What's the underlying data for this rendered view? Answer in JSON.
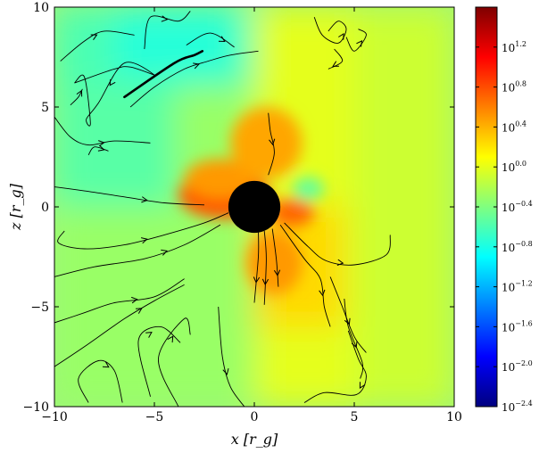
{
  "chart_data": {
    "type": "heatmap",
    "title": "",
    "xlabel": "x [r_g]",
    "ylabel": "z [r_g]",
    "xlim": [
      -10,
      10
    ],
    "ylim": [
      -10,
      10
    ],
    "x_ticks": [
      -10,
      -5,
      0,
      5,
      10
    ],
    "y_ticks": [
      -10,
      -5,
      0,
      5,
      10
    ],
    "x_tick_labels": [
      "−10",
      "−5",
      "0",
      "5",
      "10"
    ],
    "y_tick_labels": [
      "−10",
      "−5",
      "0",
      "5",
      "10"
    ],
    "colorbar": {
      "scale": "log",
      "range_log10": [
        -2.4,
        1.6
      ],
      "ticks_log10": [
        1.2,
        0.8,
        0.4,
        0.0,
        -0.4,
        -0.8,
        -1.2,
        -1.6,
        -2.0,
        -2.4
      ],
      "tick_labels": [
        "10^1.2",
        "10^0.8",
        "10^0.4",
        "10^0.0",
        "10^−0.4",
        "10^−0.8",
        "10^−1.2",
        "10^−1.6",
        "10^−2.0",
        "10^−2.4"
      ],
      "colormap": "jet"
    },
    "black_hole": {
      "center": [
        0,
        0
      ],
      "radius": 1.3,
      "color": "#000000"
    },
    "field_regions": [
      {
        "x0": -10,
        "x1": 0,
        "y0": -10,
        "y1": 10,
        "log10_value": -0.3
      },
      {
        "x0": -10,
        "x1": 0,
        "y0": 6,
        "y1": 10,
        "log10_value": -0.6
      },
      {
        "x0": -10,
        "x1": -4,
        "y0": 0,
        "y1": 6,
        "log10_value": -0.55
      },
      {
        "x0": -7,
        "x1": -1,
        "y0": 6.5,
        "y1": 10,
        "log10_value": -0.75
      },
      {
        "x0": 0,
        "x1": 10,
        "y0": -10,
        "y1": 10,
        "log10_value": 0.0
      },
      {
        "x0": 5,
        "x1": 10,
        "y0": -10,
        "y1": 10,
        "log10_value": -0.1
      },
      {
        "x0": 0,
        "x1": 4.5,
        "y0": -6,
        "y1": 0,
        "log10_value": 0.25
      }
    ],
    "hot_spots": [
      {
        "x": -1.5,
        "y": 0.6,
        "rx": 2.3,
        "ry": 1.2,
        "log10_value": 0.75
      },
      {
        "x": -1.7,
        "y": 1.4,
        "rx": 1.8,
        "ry": 1.0,
        "log10_value": 0.5
      },
      {
        "x": 1.9,
        "y": -0.3,
        "rx": 1.1,
        "ry": 0.7,
        "log10_value": 0.7
      },
      {
        "x": 1.0,
        "y": -2.8,
        "rx": 1.4,
        "ry": 1.6,
        "log10_value": 0.5
      },
      {
        "x": 0.6,
        "y": 3.2,
        "rx": 1.8,
        "ry": 1.8,
        "log10_value": 0.45
      },
      {
        "x": 2.7,
        "y": 0.9,
        "rx": 0.8,
        "ry": 0.6,
        "log10_value": -0.5
      }
    ],
    "streamlines": [
      [
        [
          -10,
          1.0
        ],
        [
          -8.5,
          0.8
        ],
        [
          -6.5,
          0.5
        ],
        [
          -4.5,
          0.2
        ],
        [
          -2.5,
          0.1
        ]
      ],
      [
        [
          -9.5,
          -1.2
        ],
        [
          -9.8,
          -1.8
        ],
        [
          -8.5,
          -2.1
        ],
        [
          -6.5,
          -1.9
        ],
        [
          -4.5,
          -1.4
        ],
        [
          -2.5,
          -0.8
        ],
        [
          -1.3,
          -0.3
        ]
      ],
      [
        [
          -10,
          -3.5
        ],
        [
          -8,
          -3.0
        ],
        [
          -5.5,
          -2.6
        ],
        [
          -3.5,
          -1.9
        ],
        [
          -1.7,
          -0.9
        ]
      ],
      [
        [
          -10,
          -5.8
        ],
        [
          -8.5,
          -5.3
        ],
        [
          -7.0,
          -4.8
        ],
        [
          -5.0,
          -4.5
        ],
        [
          -3.5,
          -3.6
        ]
      ],
      [
        [
          -10,
          -8.0
        ],
        [
          -8.5,
          -7.0
        ],
        [
          -6.5,
          -5.6
        ],
        [
          -5.0,
          -4.7
        ],
        [
          -3.5,
          -3.9
        ]
      ],
      [
        [
          -8.3,
          -9.8
        ],
        [
          -8.8,
          -8.6
        ],
        [
          -7.8,
          -7.7
        ],
        [
          -7.0,
          -8.2
        ],
        [
          -6.6,
          -9.8
        ]
      ],
      [
        [
          -5.2,
          -9.5
        ],
        [
          -5.8,
          -6.7
        ],
        [
          -4.7,
          -6.0
        ],
        [
          -3.7,
          -6.8
        ]
      ],
      [
        [
          -3.8,
          -10
        ],
        [
          -4.8,
          -7.6
        ],
        [
          -3.5,
          -5.6
        ],
        [
          -3.2,
          -6.4
        ]
      ],
      [
        [
          -1.8,
          -5.0
        ],
        [
          -1.6,
          -7.5
        ],
        [
          -1.2,
          -9.0
        ],
        [
          -0.5,
          -10
        ]
      ],
      [
        [
          -10,
          4.5
        ],
        [
          -9.2,
          3.5
        ],
        [
          -8.3,
          3.1
        ],
        [
          -7.0,
          3.3
        ],
        [
          -5.2,
          3.2
        ]
      ],
      [
        [
          -8.3,
          2.6
        ],
        [
          -8.0,
          3.0
        ],
        [
          -7.3,
          2.8
        ]
      ],
      [
        [
          -9.0,
          6.2
        ],
        [
          -7.0,
          6.9
        ],
        [
          -6.2,
          7.0
        ],
        [
          -5.0,
          6.6
        ],
        [
          -6.5,
          7.2
        ],
        [
          -7.8,
          5.2
        ],
        [
          -8.4,
          4.4
        ],
        [
          -8.2,
          4.2
        ],
        [
          -8.5,
          6.5
        ],
        [
          -9.0,
          6.2
        ]
      ],
      [
        [
          -9.2,
          5.1
        ],
        [
          -8.8,
          5.5
        ],
        [
          -8.6,
          5.9
        ]
      ],
      [
        [
          -9.7,
          7.3
        ],
        [
          -8.5,
          8.3
        ],
        [
          -7.5,
          8.8
        ],
        [
          -6.0,
          8.6
        ]
      ],
      [
        [
          -5.5,
          7.9
        ],
        [
          -5.2,
          9.5
        ],
        [
          -3.8,
          9.3
        ],
        [
          -3.2,
          9.8
        ]
      ],
      [
        [
          -3.4,
          8.1
        ],
        [
          -2.2,
          8.7
        ],
        [
          -1.0,
          8.0
        ]
      ],
      [
        [
          -6.2,
          5.0
        ],
        [
          -5.0,
          6.0
        ],
        [
          -3.5,
          6.9
        ],
        [
          -2.3,
          7.3
        ],
        [
          -1.2,
          7.6
        ],
        [
          0.2,
          7.8
        ]
      ],
      [
        [
          0.7,
          4.7
        ],
        [
          0.8,
          3.8
        ],
        [
          1.0,
          2.7
        ],
        [
          0.7,
          1.6
        ]
      ],
      [
        [
          0.2,
          -1.2
        ],
        [
          0.2,
          -2.5
        ],
        [
          0.0,
          -4.8
        ]
      ],
      [
        [
          0.5,
          -1.2
        ],
        [
          0.6,
          -2.6
        ],
        [
          0.5,
          -4.9
        ]
      ],
      [
        [
          0.9,
          -1.1
        ],
        [
          1.1,
          -2.6
        ],
        [
          1.2,
          -4.0
        ]
      ],
      [
        [
          1.3,
          -0.9
        ],
        [
          2.5,
          -2.6
        ],
        [
          3.3,
          -3.6
        ],
        [
          3.5,
          -5.0
        ],
        [
          3.8,
          -6.0
        ]
      ],
      [
        [
          1.5,
          -0.8
        ],
        [
          2.7,
          -2.0
        ],
        [
          3.6,
          -2.7
        ],
        [
          5.0,
          -2.9
        ],
        [
          6.6,
          -2.4
        ],
        [
          6.8,
          -1.4
        ]
      ],
      [
        [
          3.8,
          -3.5
        ],
        [
          4.4,
          -5.0
        ],
        [
          5.0,
          -6.5
        ],
        [
          5.6,
          -7.3
        ]
      ],
      [
        [
          4.5,
          -4.6
        ],
        [
          4.7,
          -6.0
        ],
        [
          5.4,
          -7.8
        ],
        [
          5.3,
          -8.6
        ]
      ],
      [
        [
          4.7,
          -6.2
        ],
        [
          5.2,
          -7.6
        ],
        [
          5.6,
          -8.5
        ],
        [
          5.1,
          -9.4
        ],
        [
          3.5,
          -9.3
        ],
        [
          2.5,
          -9.8
        ]
      ],
      [
        [
          3.0,
          9.5
        ],
        [
          3.4,
          8.6
        ],
        [
          4.2,
          8.2
        ],
        [
          4.6,
          8.9
        ],
        [
          4.2,
          9.3
        ],
        [
          3.7,
          8.8
        ]
      ],
      [
        [
          4.6,
          8.5
        ],
        [
          5.0,
          7.8
        ],
        [
          5.6,
          8.6
        ],
        [
          5.2,
          8.9
        ]
      ],
      [
        [
          4.0,
          7.9
        ],
        [
          4.4,
          7.3
        ],
        [
          3.7,
          6.9
        ]
      ]
    ],
    "bold_streamline": [
      [
        -6.5,
        5.5
      ],
      [
        -4.0,
        7.2
      ],
      [
        -3.0,
        7.6
      ],
      [
        -2.6,
        7.8
      ]
    ]
  }
}
